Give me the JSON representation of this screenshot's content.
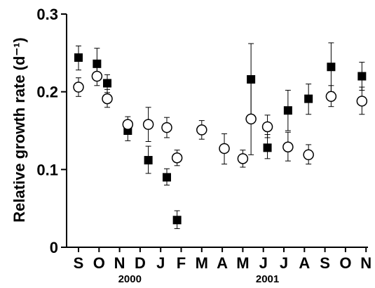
{
  "chart_data": {
    "type": "scatter",
    "title": "",
    "xlabel": "",
    "ylabel": "Relative growth rate (d⁻¹)",
    "ylim": [
      0,
      0.3
    ],
    "yticks": [
      "0",
      "0.1",
      "0.2",
      "0.3"
    ],
    "categories": [
      "S",
      "O",
      "N",
      "D",
      "J",
      "F",
      "M",
      "A",
      "M",
      "J",
      "J",
      "A",
      "S",
      "O",
      "N"
    ],
    "year_labels": [
      {
        "label": "2000",
        "month_position": 2.5
      },
      {
        "label": "2001",
        "month_position": 9.2
      }
    ],
    "grid": false,
    "legend": "none",
    "series": [
      {
        "marker": "filled-square",
        "color": "#000000",
        "points": [
          {
            "x": 0.0,
            "y": 0.244,
            "lo": 0.228,
            "hi": 0.259
          },
          {
            "x": 0.9,
            "y": 0.236,
            "lo": 0.219,
            "hi": 0.256
          },
          {
            "x": 1.4,
            "y": 0.211,
            "lo": 0.199,
            "hi": 0.222
          },
          {
            "x": 2.4,
            "y": 0.15,
            "lo": 0.137,
            "hi": 0.163
          },
          {
            "x": 3.4,
            "y": 0.112,
            "lo": 0.095,
            "hi": 0.13
          },
          {
            "x": 4.3,
            "y": 0.09,
            "lo": 0.08,
            "hi": 0.101
          },
          {
            "x": 4.8,
            "y": 0.035,
            "lo": 0.024,
            "hi": 0.047
          },
          {
            "x": 8.4,
            "y": 0.216,
            "lo": 0.17,
            "hi": 0.262
          },
          {
            "x": 9.2,
            "y": 0.128,
            "lo": 0.114,
            "hi": 0.145
          },
          {
            "x": 10.2,
            "y": 0.176,
            "lo": 0.15,
            "hi": 0.202
          },
          {
            "x": 11.2,
            "y": 0.191,
            "lo": 0.171,
            "hi": 0.21
          },
          {
            "x": 12.3,
            "y": 0.232,
            "lo": 0.2,
            "hi": 0.263
          },
          {
            "x": 13.8,
            "y": 0.22,
            "lo": 0.202,
            "hi": 0.238
          }
        ]
      },
      {
        "marker": "open-circle",
        "color": "#000000",
        "points": [
          {
            "x": 0.0,
            "y": 0.206,
            "lo": 0.194,
            "hi": 0.218
          },
          {
            "x": 0.9,
            "y": 0.22,
            "lo": 0.208,
            "hi": 0.232
          },
          {
            "x": 1.4,
            "y": 0.191,
            "lo": 0.18,
            "hi": 0.203
          },
          {
            "x": 2.4,
            "y": 0.158,
            "lo": 0.148,
            "hi": 0.168
          },
          {
            "x": 3.4,
            "y": 0.158,
            "lo": 0.136,
            "hi": 0.18
          },
          {
            "x": 4.3,
            "y": 0.154,
            "lo": 0.141,
            "hi": 0.167
          },
          {
            "x": 4.8,
            "y": 0.115,
            "lo": 0.105,
            "hi": 0.125
          },
          {
            "x": 6.0,
            "y": 0.151,
            "lo": 0.139,
            "hi": 0.163
          },
          {
            "x": 7.1,
            "y": 0.127,
            "lo": 0.107,
            "hi": 0.146
          },
          {
            "x": 8.0,
            "y": 0.114,
            "lo": 0.103,
            "hi": 0.125
          },
          {
            "x": 8.4,
            "y": 0.165,
            "lo": 0.119,
            "hi": 0.211
          },
          {
            "x": 9.2,
            "y": 0.155,
            "lo": 0.141,
            "hi": 0.17
          },
          {
            "x": 10.2,
            "y": 0.129,
            "lo": 0.111,
            "hi": 0.148
          },
          {
            "x": 11.2,
            "y": 0.119,
            "lo": 0.107,
            "hi": 0.132
          },
          {
            "x": 12.3,
            "y": 0.194,
            "lo": 0.181,
            "hi": 0.208
          },
          {
            "x": 13.8,
            "y": 0.188,
            "lo": 0.171,
            "hi": 0.206
          }
        ]
      }
    ]
  }
}
